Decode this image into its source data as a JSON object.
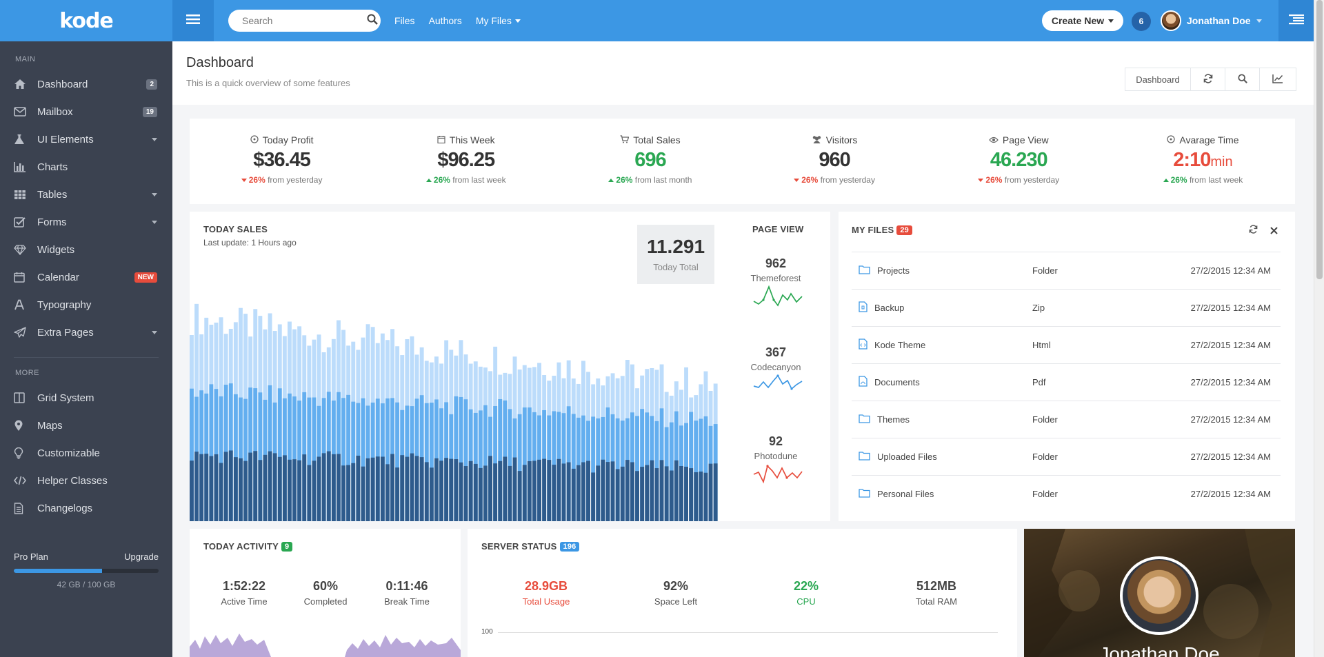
{
  "app": {
    "logo": "kode"
  },
  "sidebar": {
    "main_label": "MAIN",
    "more_label": "MORE",
    "items": [
      {
        "label": "Dashboard",
        "badge": "2",
        "icon": "home-icon"
      },
      {
        "label": "Mailbox",
        "badge": "19",
        "icon": "envelope-icon"
      },
      {
        "label": "UI Elements",
        "icon": "flask-icon"
      },
      {
        "label": "Charts",
        "icon": "bar-chart-icon"
      },
      {
        "label": "Tables",
        "icon": "table-icon"
      },
      {
        "label": "Forms",
        "icon": "checkbox-icon"
      },
      {
        "label": "Widgets",
        "icon": "diamond-icon"
      },
      {
        "label": "Calendar",
        "badge": "NEW",
        "icon": "calendar-icon"
      },
      {
        "label": "Typography",
        "icon": "font-icon"
      },
      {
        "label": "Extra Pages",
        "icon": "paper-plane-icon"
      }
    ],
    "more_items": [
      {
        "label": "Grid System",
        "icon": "columns-icon"
      },
      {
        "label": "Maps",
        "icon": "map-marker-icon"
      },
      {
        "label": "Customizable",
        "icon": "lightbulb-icon"
      },
      {
        "label": "Helper Classes",
        "icon": "code-icon"
      },
      {
        "label": "Changelogs",
        "icon": "file-icon"
      }
    ],
    "plan": {
      "name": "Pro Plan",
      "upgrade": "Upgrade",
      "storage": "42 GB / 100 GB",
      "usage_fraction": 0.61
    }
  },
  "topbar": {
    "search_placeholder": "Search",
    "links": [
      "Files",
      "Authors",
      "My Files"
    ],
    "create_new": "Create New",
    "notifications": "6",
    "user_name": "Jonathan Doe"
  },
  "header": {
    "title": "Dashboard",
    "subtitle": "This is a quick overview of some features",
    "button_label": "Dashboard"
  },
  "stats": [
    {
      "title": "Today Profit",
      "value": "$36.45",
      "trend": "down",
      "pct": "26%",
      "foot": "from yesterday",
      "icon": "clock-icon",
      "color": "#333333"
    },
    {
      "title": "This Week",
      "value": "$96.25",
      "trend": "up",
      "pct": "26%",
      "foot": "from last week",
      "icon": "calendar-icon",
      "color": "#333333"
    },
    {
      "title": "Total Sales",
      "value": "696",
      "trend": "up",
      "pct": "26%",
      "foot": "from last month",
      "icon": "cart-icon",
      "color": "#2aa752"
    },
    {
      "title": "Visitors",
      "value": "960",
      "trend": "down",
      "pct": "26%",
      "foot": "from yesterday",
      "icon": "users-icon",
      "color": "#333333"
    },
    {
      "title": "Page View",
      "value": "46.230",
      "trend": "down",
      "pct": "26%",
      "foot": "from yesterday",
      "icon": "eye-icon",
      "color": "#2aa752"
    },
    {
      "title": "Avarage Time",
      "value": "2:10",
      "unit": "min",
      "trend": "up",
      "pct": "26%",
      "foot": "from last week",
      "icon": "clock-icon",
      "color": "#e74c3c"
    }
  ],
  "sales": {
    "title": "TODAY SALES",
    "last_update": "Last update: 1 Hours ago",
    "total_value": "11.291",
    "total_label": "Today Total",
    "page_view_title": "PAGE VIEW",
    "page_views": [
      {
        "value": "962",
        "label": "Themeforest",
        "color": "#2aa752"
      },
      {
        "value": "367",
        "label": "Codecanyon",
        "color": "#3c97e4"
      },
      {
        "value": "92",
        "label": "Photodune",
        "color": "#e74c3c"
      }
    ]
  },
  "files": {
    "title": "MY FILES",
    "count": "29",
    "rows": [
      {
        "name": "Projects",
        "type": "Folder",
        "date": "27/2/2015 12:34 AM",
        "icon": "folder-icon"
      },
      {
        "name": "Backup",
        "type": "Zip",
        "date": "27/2/2015 12:34 AM",
        "icon": "file-zip-icon"
      },
      {
        "name": "Kode Theme",
        "type": "Html",
        "date": "27/2/2015 12:34 AM",
        "icon": "file-code-icon"
      },
      {
        "name": "Documents",
        "type": "Pdf",
        "date": "27/2/2015 12:34 AM",
        "icon": "file-pdf-icon"
      },
      {
        "name": "Themes",
        "type": "Folder",
        "date": "27/2/2015 12:34 AM",
        "icon": "folder-icon"
      },
      {
        "name": "Uploaded Files",
        "type": "Folder",
        "date": "27/2/2015 12:34 AM",
        "icon": "folder-icon"
      },
      {
        "name": "Personal Files",
        "type": "Folder",
        "date": "27/2/2015 12:34 AM",
        "icon": "folder-icon"
      }
    ]
  },
  "activity": {
    "title": "TODAY ACTIVITY",
    "count": "9",
    "metrics": [
      {
        "value": "1:52:22",
        "label": "Active Time"
      },
      {
        "value": "60%",
        "label": "Completed"
      },
      {
        "value": "0:11:46",
        "label": "Break Time"
      }
    ]
  },
  "server": {
    "title": "SERVER STATUS",
    "count": "196",
    "metrics": [
      {
        "value": "28.9GB",
        "label": "Total Usage",
        "color": "#e74c3c"
      },
      {
        "value": "92%",
        "label": "Space Left",
        "color": "#444444"
      },
      {
        "value": "22%",
        "label": "CPU",
        "color": "#2aa752"
      },
      {
        "value": "512MB",
        "label": "Total RAM",
        "color": "#444444"
      }
    ],
    "axis_label": "100"
  },
  "profile": {
    "name": "Jonathan Doe"
  },
  "colors": {
    "accent": "#3c97e4",
    "sidebar": "#3b4250",
    "success": "#2aa752",
    "danger": "#e74c3c"
  }
}
